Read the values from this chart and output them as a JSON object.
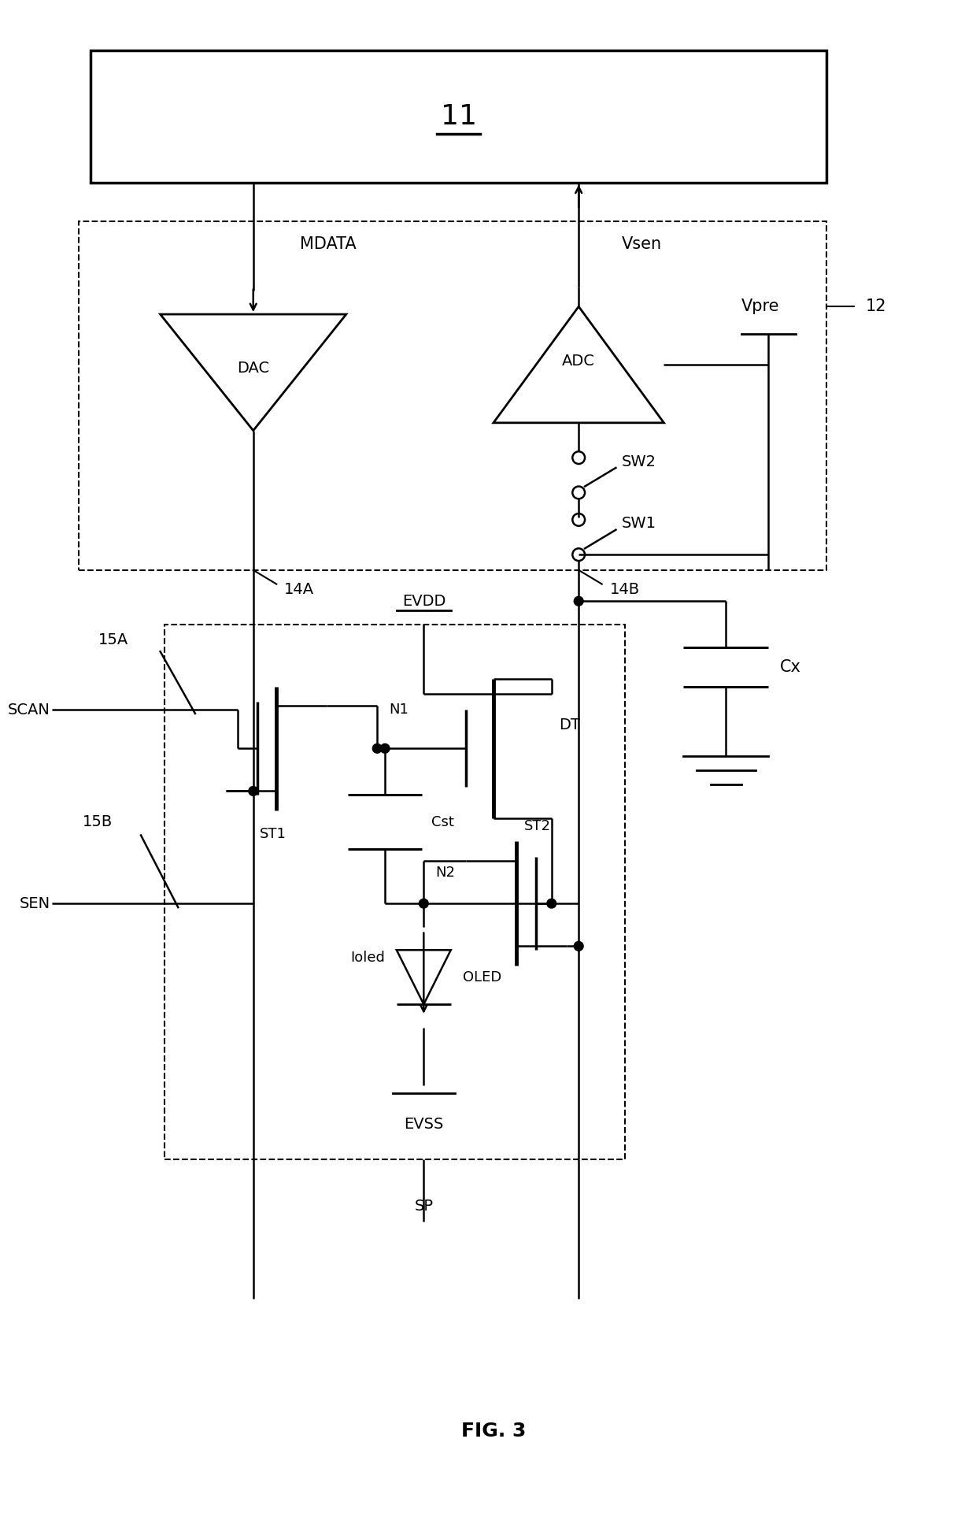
{
  "bg_color": "#ffffff",
  "line_color": "#000000",
  "fig_width": 12.4,
  "fig_height": 19.35,
  "dpi": 100,
  "title": "FIG. 3",
  "box11_label": "11",
  "dac_label": "DAC",
  "adc_label": "ADC",
  "mdata_label": "MDATA",
  "vsen_label": "Vsen",
  "vpre_label": "Vpre",
  "sw2_label": "SW2",
  "sw1_label": "SW1",
  "label12": "12",
  "label14a": "14A",
  "label14b": "14B",
  "label15a": "15A",
  "label15b": "15B",
  "scan_label": "SCAN",
  "sen_label": "SEN",
  "evdd_label": "EVDD",
  "evss_label": "EVSS",
  "dt_label": "DT",
  "st1_label": "ST1",
  "st2_label": "ST2",
  "n1_label": "N1",
  "n2_label": "N2",
  "cst_label": "Cst",
  "cx_label": "Cx",
  "oled_label": "OLED",
  "ioled_label": "Ioled",
  "sp_label": "SP",
  "fig_label": "FIG. 3"
}
